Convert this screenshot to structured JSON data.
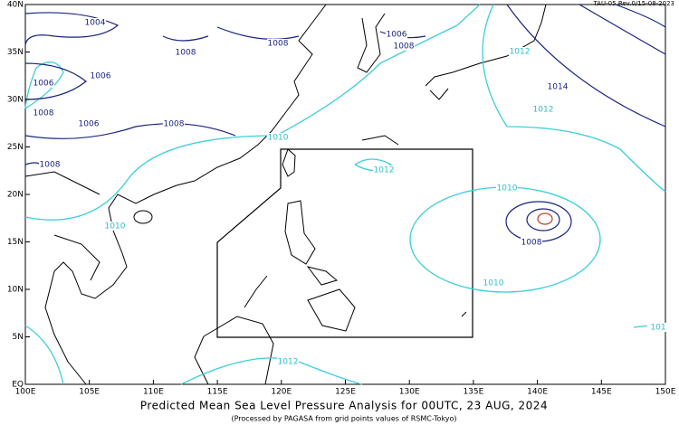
{
  "version": "TAU-05 Rev.0/15-08-2023",
  "title": "Predicted Mean Sea Level Pressure Analysis for 00UTC, 23 AUG, 2024",
  "subtitle": "(Processed by PAGASA from grid points values of RSMC-Tokyo)",
  "lon_labels": [
    "100E",
    "105E",
    "110E",
    "115E",
    "120E",
    "125E",
    "130E",
    "135E",
    "140E",
    "145E",
    "150E"
  ],
  "lat_labels": [
    "EQ",
    "5N",
    "10N",
    "15N",
    "20N",
    "25N",
    "30N",
    "35N",
    "40N"
  ],
  "contour_labels": [
    "1010",
    "1012",
    "1010",
    "1010",
    "1010",
    "1012",
    "1012",
    "1012",
    "101",
    "1004",
    "1008",
    "1008",
    "1006",
    "1008",
    "1006",
    "1006",
    "1008",
    "1006",
    "1008",
    "1008",
    "1014",
    "1008"
  ]
}
